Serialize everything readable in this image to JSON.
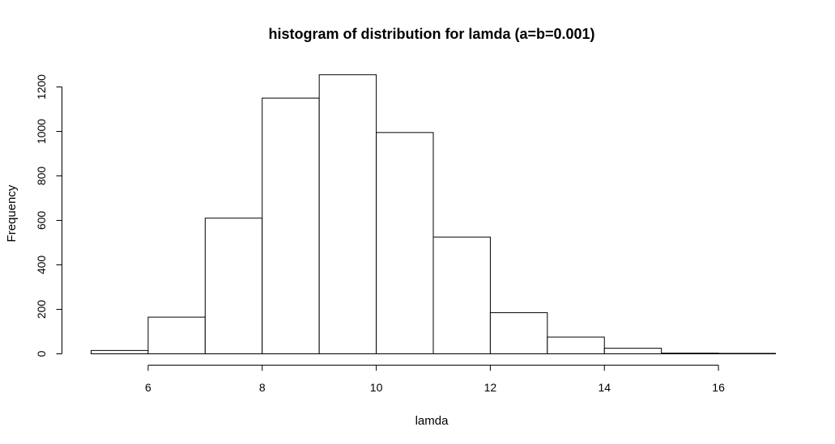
{
  "chart_data": {
    "type": "bar",
    "title": "histogram of distribution for lamda (a=b=0.001)",
    "xlabel": "lamda",
    "ylabel": "Frequency",
    "bins": [
      {
        "x0": 5,
        "x1": 6,
        "value": 15
      },
      {
        "x0": 6,
        "x1": 7,
        "value": 165
      },
      {
        "x0": 7,
        "x1": 8,
        "value": 610
      },
      {
        "x0": 8,
        "x1": 9,
        "value": 1150
      },
      {
        "x0": 9,
        "x1": 10,
        "value": 1255
      },
      {
        "x0": 10,
        "x1": 11,
        "value": 995
      },
      {
        "x0": 11,
        "x1": 12,
        "value": 525
      },
      {
        "x0": 12,
        "x1": 13,
        "value": 185
      },
      {
        "x0": 13,
        "x1": 14,
        "value": 75
      },
      {
        "x0": 14,
        "x1": 15,
        "value": 25
      },
      {
        "x0": 15,
        "x1": 16,
        "value": 3
      },
      {
        "x0": 16,
        "x1": 17,
        "value": 2
      }
    ],
    "xticks": [
      "6",
      "8",
      "10",
      "12",
      "14",
      "16"
    ],
    "yticks": [
      "0",
      "200",
      "400",
      "600",
      "800",
      "1000",
      "1200"
    ],
    "xlim": [
      5,
      17
    ],
    "ylim": [
      0,
      1200
    ],
    "grid": false,
    "colors": {
      "bar_fill": "#ffffff",
      "bar_stroke": "#000000"
    }
  }
}
